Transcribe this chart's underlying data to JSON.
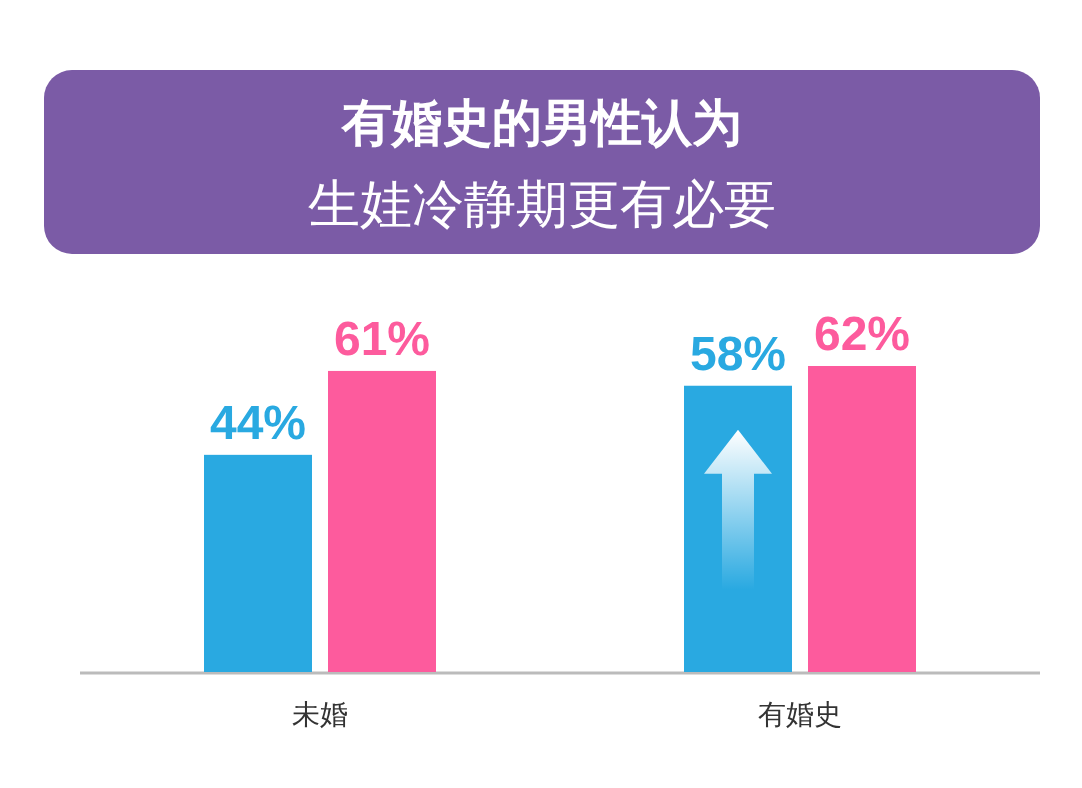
{
  "chart_data": {
    "type": "bar",
    "title": "有婚史的男性认为",
    "subtitle": "生娃冷静期更有必要",
    "categories": [
      "未婚",
      "有婚史"
    ],
    "series": [
      {
        "color": "#29a9e1",
        "values": [
          44,
          58
        ],
        "value_labels": [
          "44%",
          "58%"
        ]
      },
      {
        "color": "#fd5b9d",
        "values": [
          61,
          62
        ],
        "value_labels": [
          "61%",
          "62%"
        ]
      }
    ]
  }
}
